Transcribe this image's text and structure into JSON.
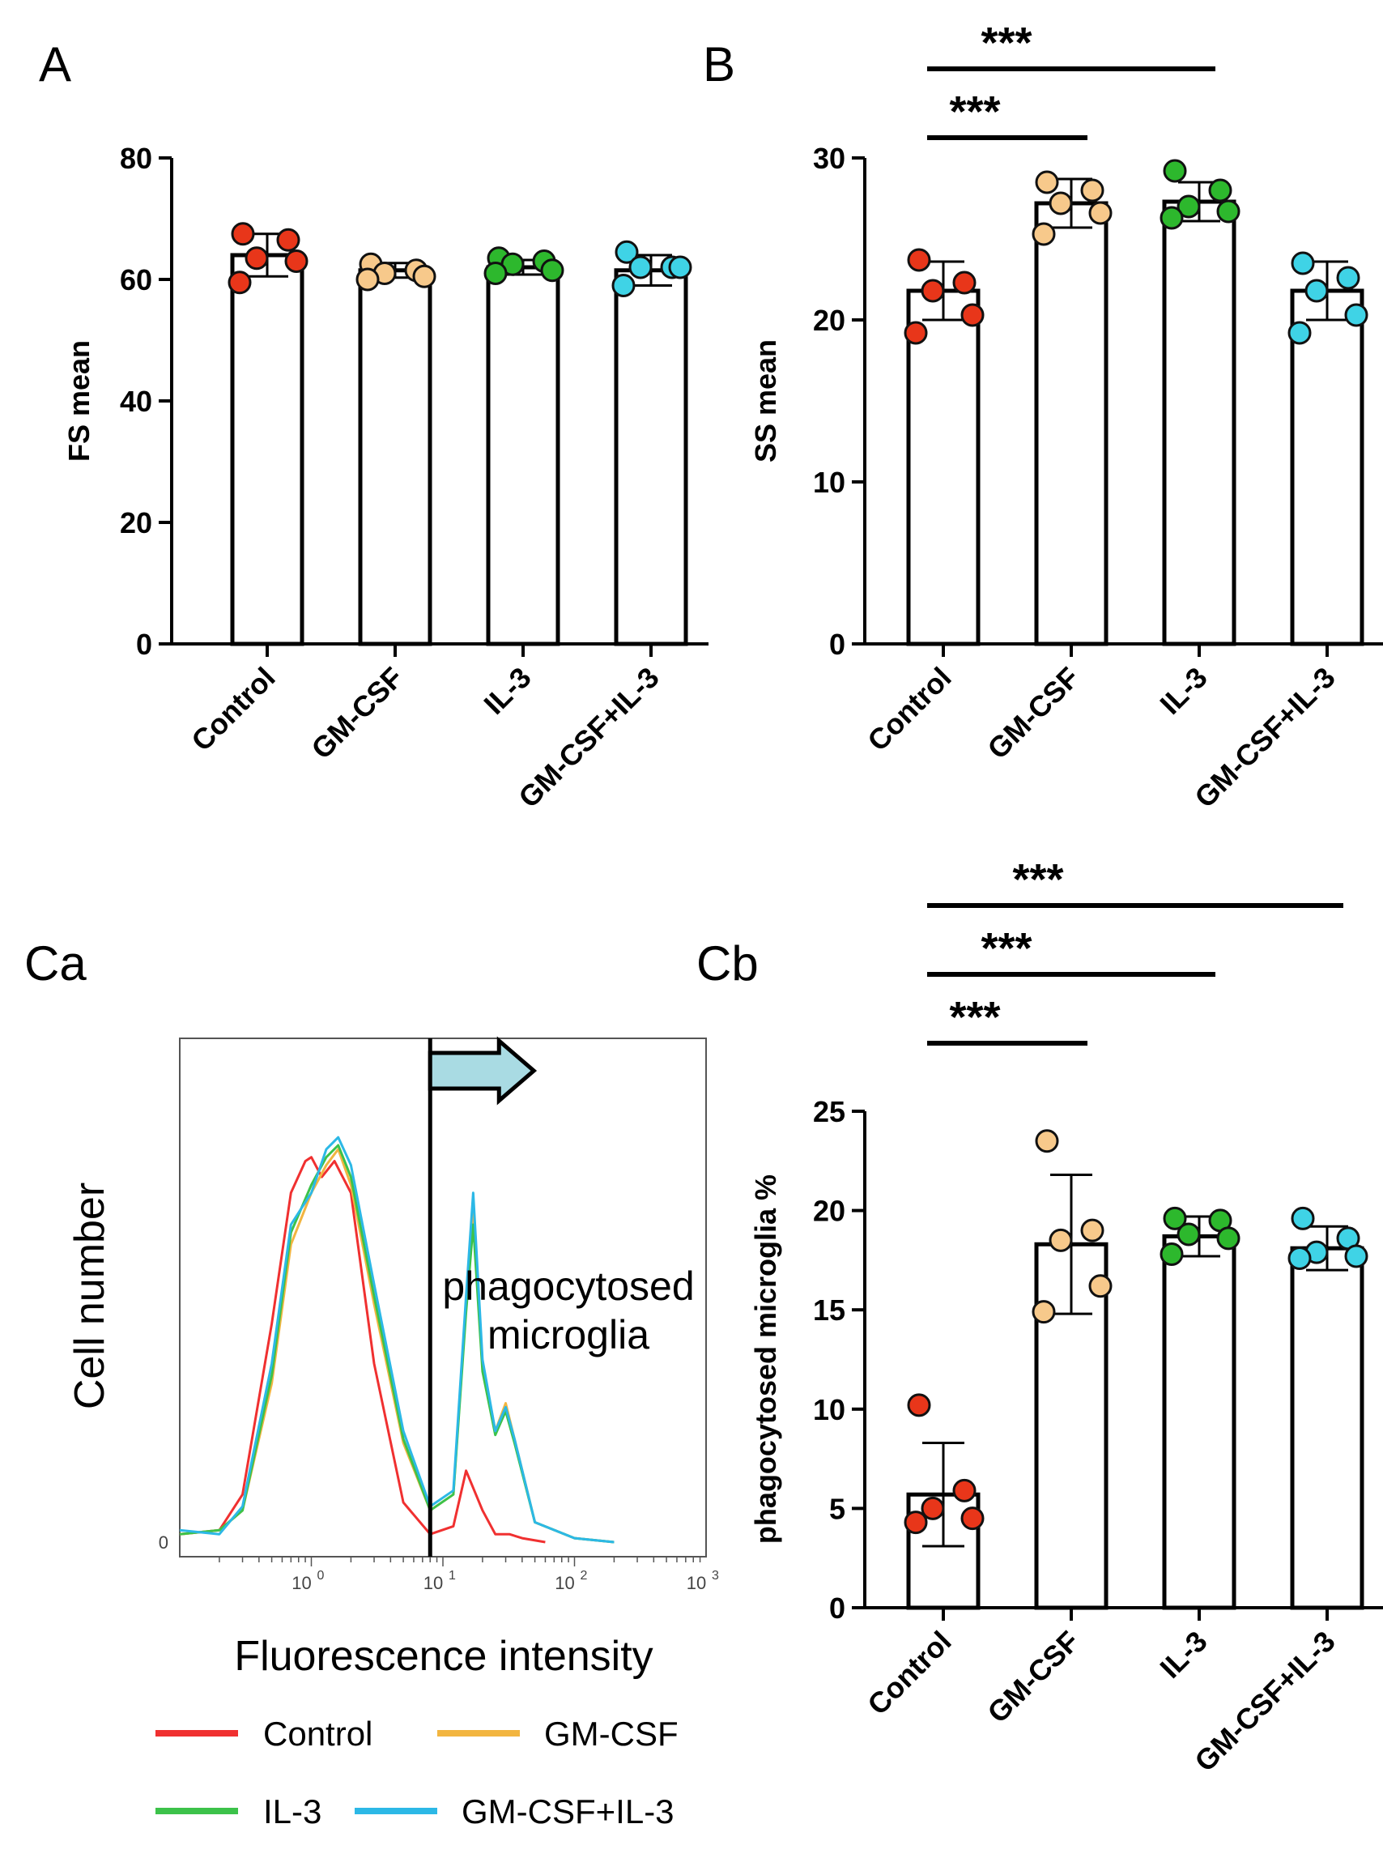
{
  "chart_data": [
    {
      "panel": "A",
      "type": "bar",
      "ylabel": "FS mean",
      "ylim": [
        0,
        80
      ],
      "yticks": [
        0,
        20,
        40,
        60,
        80
      ],
      "categories": [
        "Control",
        "GM-CSF",
        "IL-3",
        "GM-CSF+IL-3"
      ],
      "colors": [
        "#e8361a",
        "#f7c98b",
        "#2db82d",
        "#3fd3e6"
      ],
      "means": [
        64,
        61.5,
        62,
        61.5
      ],
      "errors": [
        3.5,
        1.2,
        1.2,
        2.5
      ],
      "points": [
        [
          67.5,
          66.5,
          63.5,
          63.0,
          59.5
        ],
        [
          62.5,
          61.5,
          61.0,
          60.5,
          60.0
        ],
        [
          63.5,
          63.0,
          62.5,
          61.5,
          61.0
        ],
        [
          64.5,
          62.0,
          62.0,
          62.0,
          59.0
        ]
      ],
      "significance": []
    },
    {
      "panel": "B",
      "type": "bar",
      "ylabel": "SS mean",
      "ylim": [
        0,
        30
      ],
      "yticks": [
        0,
        10,
        20,
        30
      ],
      "categories": [
        "Control",
        "GM-CSF",
        "IL-3",
        "GM-CSF+IL-3"
      ],
      "colors": [
        "#e8361a",
        "#f7c98b",
        "#2db82d",
        "#3fd3e6"
      ],
      "means": [
        21.8,
        27.2,
        27.3,
        21.8
      ],
      "errors": [
        1.8,
        1.5,
        1.2,
        1.8
      ],
      "points": [
        [
          23.7,
          22.3,
          21.8,
          20.3,
          19.2
        ],
        [
          28.5,
          28.0,
          27.2,
          26.6,
          25.3
        ],
        [
          29.2,
          28.0,
          27.0,
          26.7,
          26.3
        ],
        [
          23.5,
          22.6,
          21.8,
          20.3,
          19.2
        ]
      ],
      "significance": [
        {
          "from": 0,
          "to": 2,
          "label": "***",
          "level": 2
        },
        {
          "from": 0,
          "to": 1,
          "label": "***",
          "level": 1
        }
      ]
    },
    {
      "panel": "Ca",
      "type": "line",
      "xlabel": "Fluorescence intensity",
      "ylabel": "Cell number",
      "y_zero_label": "0",
      "xscale": "log",
      "xlim": [
        0.1,
        1000
      ],
      "xticks": [
        {
          "base": "10",
          "exp": "0"
        },
        {
          "base": "10",
          "exp": "1"
        },
        {
          "base": "10",
          "exp": "2"
        },
        {
          "base": "10",
          "exp": "3"
        }
      ],
      "gate": 8,
      "annotation": [
        "phagocytosed",
        "microglia"
      ],
      "series": [
        {
          "name": "Control",
          "color": "#f03030",
          "x": [
            0.1,
            0.2,
            0.3,
            0.5,
            0.7,
            0.9,
            1.0,
            1.2,
            1.5,
            2.0,
            3.0,
            5.0,
            8.0,
            12.0,
            15.0,
            20.0,
            25.0,
            32.0,
            40.0,
            60.0
          ],
          "y": [
            2,
            3,
            12,
            55,
            88,
            96,
            97,
            92,
            96,
            88,
            45,
            10,
            2,
            4,
            18,
            8,
            2,
            2,
            1,
            0
          ]
        },
        {
          "name": "GM-CSF",
          "color": "#f2b540",
          "x": [
            0.1,
            0.2,
            0.3,
            0.5,
            0.7,
            1.0,
            1.3,
            1.6,
            2.0,
            3.0,
            5.0,
            8.0,
            12.0,
            15.0,
            17.0,
            20.0,
            25.0,
            30.0,
            35.0,
            50.0,
            100.0,
            200.0
          ],
          "y": [
            2,
            3,
            8,
            40,
            75,
            88,
            95,
            99,
            90,
            60,
            25,
            8,
            12,
            60,
            85,
            45,
            28,
            35,
            26,
            5,
            1,
            0
          ]
        },
        {
          "name": "IL-3",
          "color": "#3cc24a",
          "x": [
            0.1,
            0.2,
            0.3,
            0.5,
            0.7,
            1.0,
            1.3,
            1.6,
            2.0,
            3.0,
            5.0,
            8.0,
            12.0,
            15.0,
            17.0,
            20.0,
            25.0,
            30.0,
            35.0,
            50.0,
            100.0,
            200.0
          ],
          "y": [
            2,
            3,
            8,
            42,
            78,
            90,
            97,
            100,
            92,
            62,
            26,
            8,
            12,
            58,
            80,
            43,
            27,
            33,
            25,
            5,
            1,
            0
          ]
        },
        {
          "name": "GM-CSF+IL-3",
          "color": "#2cb8e6",
          "x": [
            0.1,
            0.2,
            0.3,
            0.5,
            0.7,
            1.0,
            1.3,
            1.6,
            2.0,
            3.0,
            5.0,
            8.0,
            12.0,
            15.0,
            17.0,
            20.0,
            25.0,
            30.0,
            35.0,
            50.0,
            100.0,
            200.0
          ],
          "y": [
            3,
            2,
            9,
            45,
            80,
            88,
            99,
            102,
            95,
            65,
            28,
            9,
            13,
            62,
            88,
            46,
            28,
            34,
            26,
            5,
            1,
            0
          ]
        }
      ]
    },
    {
      "panel": "Cb",
      "type": "bar",
      "ylabel": "phagocytosed microglia %",
      "ylim": [
        0,
        25
      ],
      "yticks": [
        0,
        5,
        10,
        15,
        20,
        25
      ],
      "categories": [
        "Control",
        "GM-CSF",
        "IL-3",
        "GM-CSF+IL-3"
      ],
      "colors": [
        "#e8361a",
        "#f7c98b",
        "#2db82d",
        "#3fd3e6"
      ],
      "means": [
        5.7,
        18.3,
        18.7,
        18.1
      ],
      "errors": [
        2.6,
        3.5,
        1.0,
        1.1
      ],
      "points": [
        [
          10.2,
          5.9,
          5.0,
          4.5,
          4.3
        ],
        [
          23.5,
          19.0,
          18.5,
          16.2,
          14.9
        ],
        [
          19.6,
          19.5,
          18.8,
          18.6,
          17.8
        ],
        [
          19.6,
          18.6,
          17.9,
          17.7,
          17.6
        ]
      ],
      "significance": [
        {
          "from": 0,
          "to": 3,
          "label": "***",
          "level": 3
        },
        {
          "from": 0,
          "to": 2,
          "label": "***",
          "level": 2
        },
        {
          "from": 0,
          "to": 1,
          "label": "***",
          "level": 1
        }
      ]
    }
  ]
}
